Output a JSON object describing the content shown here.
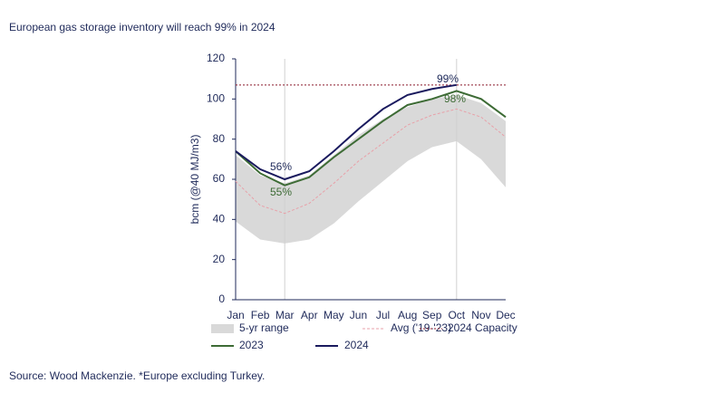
{
  "chart_data": {
    "type": "line",
    "title": "European gas storage inventory will reach 99% in 2024",
    "y_label": "bcm (@40 MJ/m3)",
    "source": "Source: Wood Mackenzie. *Europe excluding Turkey.",
    "categories": [
      "Jan",
      "Feb",
      "Mar",
      "Apr",
      "May",
      "Jun",
      "Jul",
      "Aug",
      "Sep",
      "Oct",
      "Nov",
      "Dec"
    ],
    "ylim": [
      0,
      120
    ],
    "yticks": [
      0,
      20,
      40,
      60,
      80,
      100,
      120
    ],
    "range": {
      "name": "5-yr range",
      "color": "#d9d9d9",
      "low": [
        39,
        30,
        28,
        30,
        38,
        49,
        59,
        69,
        76,
        79,
        70,
        56
      ],
      "high": [
        72,
        62,
        58,
        62,
        72,
        82,
        90,
        96,
        100,
        102,
        98,
        89
      ]
    },
    "capacity": {
      "name": "2024 Capacity",
      "value": 107,
      "color": "#8b1a2b"
    },
    "series": [
      {
        "name": "Avg ('19-'23)",
        "color": "#e8a0a8",
        "values": [
          59,
          47,
          43,
          48,
          58,
          69,
          78,
          87,
          92,
          95,
          91,
          81
        ]
      },
      {
        "name": "2023",
        "color": "#3d6b35",
        "values": [
          74,
          63,
          57,
          61,
          71,
          80,
          89,
          97,
          100,
          104,
          100,
          91
        ]
      },
      {
        "name": "2024",
        "color": "#1a1a5e",
        "values": [
          74,
          65,
          60,
          64,
          74,
          85,
          95,
          102,
          105,
          107,
          null,
          null
        ]
      }
    ],
    "annotations": [
      "56%",
      "55%",
      "99%",
      "98%"
    ]
  }
}
